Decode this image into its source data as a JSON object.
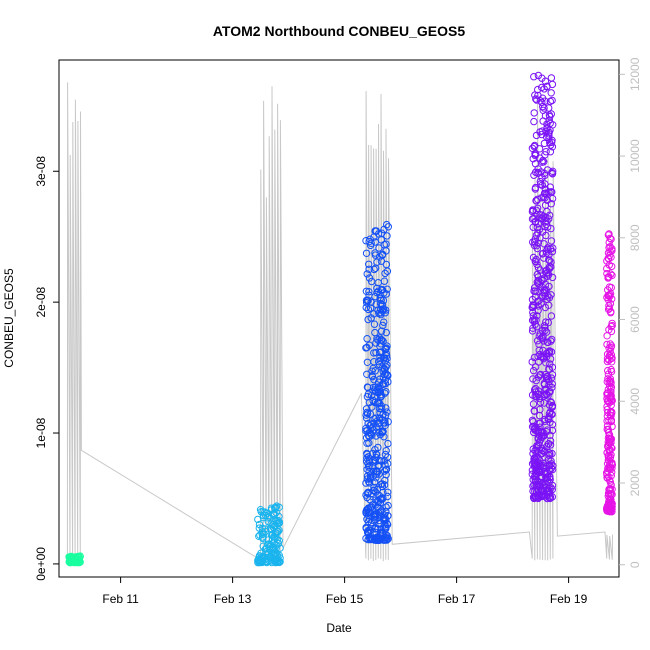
{
  "chart_data": {
    "type": "scatter",
    "title": "ATOM2 Northbound CONBEU_GEOS5",
    "xlabel": "Date",
    "ylabel": "CONBEU_GEOS5",
    "x_ticks": [
      "Feb 11",
      "Feb 13",
      "Feb 15",
      "Feb 17",
      "Feb 19"
    ],
    "x_tick_days": [
      11,
      13,
      15,
      17,
      19
    ],
    "x_range_days": [
      9.9,
      19.9
    ],
    "y_ticks": [
      "0e+00",
      "1e-08",
      "2e-08",
      "3e-08"
    ],
    "y_tick_values": [
      0,
      1e-08,
      2e-08,
      3e-08
    ],
    "ylim": [
      -1e-09,
      3.85e-08
    ],
    "y2_ticks": [
      "0",
      "2000",
      "4000",
      "6000",
      "8000",
      "10000",
      "12000"
    ],
    "y2_tick_values": [
      0,
      2000,
      4000,
      6000,
      8000,
      10000,
      12000
    ],
    "y2lim": [
      -300,
      12350
    ],
    "altitude_color": "#c8c8c8",
    "series": [
      {
        "color": "#1affa0",
        "day_range": [
          10.08,
          10.28
        ],
        "y_range": [
          1e-10,
          6e-10
        ],
        "n": 60
      },
      {
        "color": "#1ab4ee",
        "day_range": [
          13.45,
          13.85
        ],
        "y_range": [
          1e-10,
          4.5e-09
        ],
        "n": 140
      },
      {
        "color": "#1450f5",
        "day_range": [
          15.38,
          15.78
        ],
        "y_range": [
          1.8e-09,
          2.6e-08
        ],
        "n": 420
      },
      {
        "color": "#7a14f5",
        "day_range": [
          18.35,
          18.72
        ],
        "y_range": [
          5e-09,
          3.75e-08
        ],
        "n": 520
      },
      {
        "color": "#e614e6",
        "day_range": [
          19.68,
          19.78
        ],
        "y_range": [
          4e-09,
          2.55e-08
        ],
        "n": 220
      }
    ]
  }
}
